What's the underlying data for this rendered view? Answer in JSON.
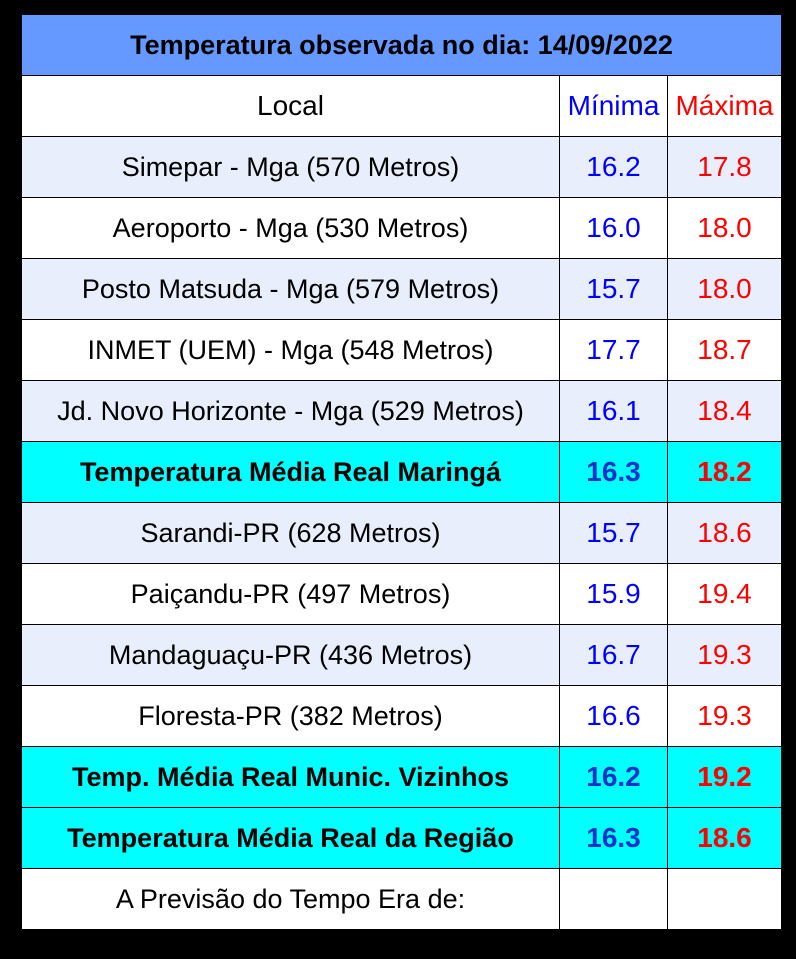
{
  "title": "Temperatura observada no dia: 14/09/2022",
  "headers": {
    "local": "Local",
    "min": "Mínima",
    "max": "Máxima"
  },
  "rows": [
    {
      "local": "Simepar - Mga  (570 Metros)",
      "min": "16.2",
      "max": "17.8",
      "type": "light"
    },
    {
      "local": "Aeroporto - Mga (530 Metros)",
      "min": "16.0",
      "max": "18.0",
      "type": "white"
    },
    {
      "local": "Posto Matsuda - Mga (579 Metros)",
      "min": "15.7",
      "max": "18.0",
      "type": "light"
    },
    {
      "local": "INMET (UEM) - Mga  (548 Metros)",
      "min": "17.7",
      "max": "18.7",
      "type": "white"
    },
    {
      "local": "Jd. Novo Horizonte - Mga (529 Metros)",
      "min": "16.1",
      "max": "18.4",
      "type": "light"
    },
    {
      "local": "Temperatura Média Real Maringá",
      "min": "16.3",
      "max": "18.2",
      "type": "avg"
    },
    {
      "local": "Sarandi-PR  (628 Metros)",
      "min": "15.7",
      "max": "18.6",
      "type": "light"
    },
    {
      "local": "Paiçandu-PR (497 Metros)",
      "min": "15.9",
      "max": "19.4",
      "type": "white"
    },
    {
      "local": "Mandaguaçu-PR (436 Metros)",
      "min": "16.7",
      "max": "19.3",
      "type": "light"
    },
    {
      "local": "Floresta-PR (382 Metros)",
      "min": "16.6",
      "max": "19.3",
      "type": "white"
    },
    {
      "local": "Temp. Média Real Munic. Vizinhos",
      "min": "16.2",
      "max": "19.2",
      "type": "avg"
    },
    {
      "local": "Temperatura Média Real da Região",
      "min": "16.3",
      "max": "18.6",
      "type": "avg"
    }
  ],
  "footer": {
    "local": "A Previsão do Tempo Era de:",
    "min": "",
    "max": ""
  },
  "colors": {
    "title_bg": "#6699ff",
    "light_row_bg": "#e8eefb",
    "avg_row_bg": "#00ffff",
    "min_text": "#0000ff",
    "max_text": "#ff0000"
  }
}
